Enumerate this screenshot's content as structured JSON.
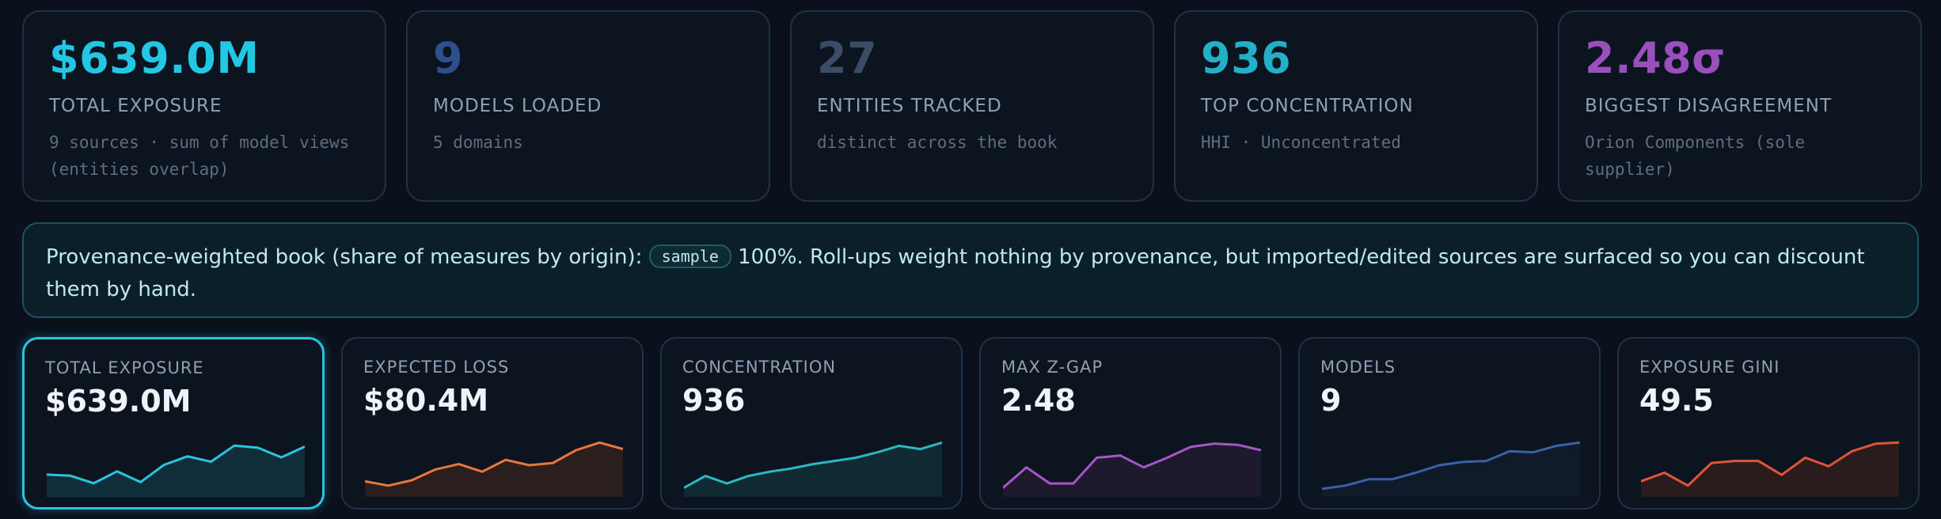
{
  "kpis": [
    {
      "value": "$639.0M",
      "label": "TOTAL EXPOSURE",
      "sub": "9 sources · sum of model views (entities overlap)",
      "color": "#22c7e3"
    },
    {
      "value": "9",
      "label": "MODELS LOADED",
      "sub": "5 domains",
      "color": "#2f4f8c"
    },
    {
      "value": "27",
      "label": "ENTITIES TRACKED",
      "sub": "distinct across the book",
      "color": "#3c4c66"
    },
    {
      "value": "936",
      "label": "TOP CONCENTRATION",
      "sub": "HHI · Unconcentrated",
      "color": "#22b0c6"
    },
    {
      "value": "2.48σ",
      "label": "BIGGEST DISAGREEMENT",
      "sub": "Orion Components (sole supplier)",
      "color": "#9a4fbd"
    }
  ],
  "banner": {
    "prefix": "Provenance-weighted book (share of measures by origin):",
    "chip": "sample",
    "suffix": "100%. Roll-ups weight nothing by provenance, but imported/edited sources are surfaced so you can discount them by hand."
  },
  "cards": [
    {
      "label": "TOTAL EXPOSURE",
      "value": "$639.0M",
      "color": "#2bc4df",
      "fill": "#0f2e3a",
      "active": true,
      "spark": [
        0.34,
        0.32,
        0.18,
        0.4,
        0.2,
        0.52,
        0.68,
        0.58,
        0.88,
        0.84,
        0.66,
        0.86
      ]
    },
    {
      "label": "EXPECTED LOSS",
      "value": "$80.4M",
      "color": "#e8773a",
      "fill": "#2a1e1f",
      "active": false,
      "spark": [
        0.2,
        0.12,
        0.22,
        0.42,
        0.52,
        0.38,
        0.6,
        0.5,
        0.54,
        0.78,
        0.92,
        0.8
      ]
    },
    {
      "label": "CONCENTRATION",
      "value": "936",
      "color": "#2bb8c4",
      "fill": "#0f2a30",
      "active": false,
      "spark": [
        0.08,
        0.3,
        0.16,
        0.3,
        0.38,
        0.44,
        0.52,
        0.58,
        0.64,
        0.74,
        0.86,
        0.8,
        0.92
      ]
    },
    {
      "label": "MAX Z-GAP",
      "value": "2.48",
      "color": "#a855c9",
      "fill": "#1e1a2e",
      "active": false,
      "spark": [
        0.08,
        0.46,
        0.16,
        0.16,
        0.64,
        0.68,
        0.46,
        0.64,
        0.84,
        0.9,
        0.88,
        0.78
      ]
    },
    {
      "label": "MODELS",
      "value": "9",
      "color": "#3a60a8",
      "fill": "#111a2a",
      "active": false,
      "spark": [
        0.06,
        0.12,
        0.24,
        0.24,
        0.36,
        0.5,
        0.56,
        0.58,
        0.76,
        0.74,
        0.86,
        0.92
      ]
    },
    {
      "label": "EXPOSURE GINI",
      "value": "49.5",
      "color": "#e0543a",
      "fill": "#2a1c1c",
      "active": false,
      "spark": [
        0.2,
        0.36,
        0.12,
        0.54,
        0.58,
        0.58,
        0.32,
        0.64,
        0.48,
        0.76,
        0.9,
        0.92
      ]
    }
  ]
}
